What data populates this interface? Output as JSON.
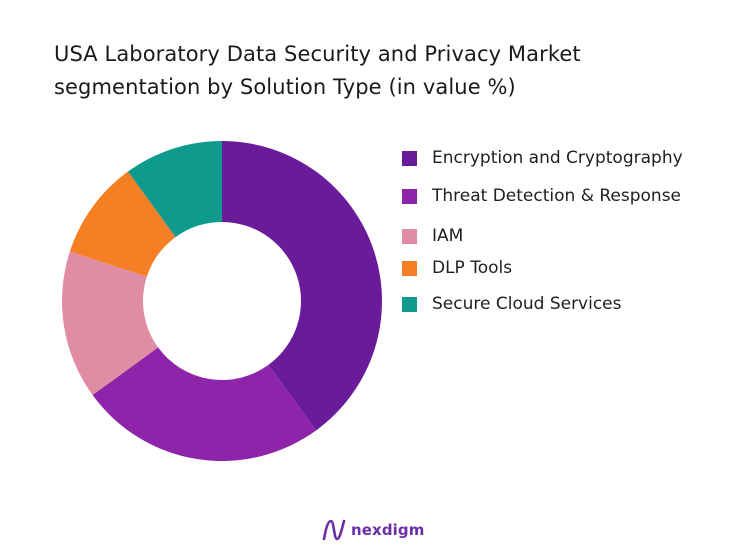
{
  "chart_data": {
    "type": "pie",
    "title": "USA Laboratory Data Security and Privacy Market segmentation by Solution Type (in value %)",
    "title_lines": [
      "USA Laboratory Data Security and Privacy Market",
      "segmentation by Solution Type (in value %)"
    ],
    "donut": true,
    "start_angle_deg": 0,
    "direction": "clockwise",
    "legend_position": "right",
    "categories": [
      "Encryption and Cryptography",
      "Threat Detection & Response",
      "IAM",
      "DLP Tools",
      "Secure Cloud Services"
    ],
    "values": [
      40,
      25,
      15,
      10,
      10
    ],
    "colors": [
      "#6a1b9a",
      "#8e24aa",
      "#e08ca4",
      "#f57f25",
      "#0e9a8c"
    ]
  },
  "brand": {
    "name": "nexdigm",
    "icon": "nexdigm-logo-icon"
  }
}
